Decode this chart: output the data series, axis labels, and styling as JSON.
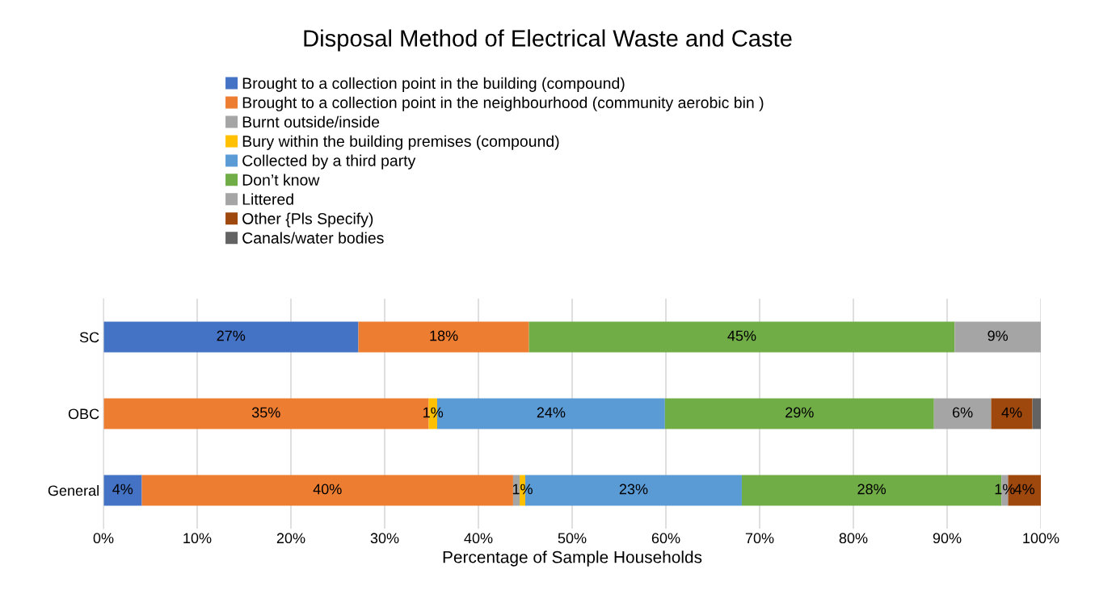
{
  "chart_data": {
    "type": "bar",
    "orientation": "horizontal",
    "stacked": true,
    "title": "Disposal Method of Electrical Waste and Caste",
    "xlabel": "Percentage of Sample Households",
    "categories": [
      "SC",
      "OBC",
      "General"
    ],
    "series": [
      {
        "name": "Brought to a collection point in the building (compound)",
        "color": "#4472c4",
        "values": [
          27.2,
          null,
          4.1
        ],
        "value_labels": [
          "27%",
          null,
          "4%"
        ]
      },
      {
        "name": "Brought to a collection point in the neighbourhood (community aerobic bin )",
        "color": "#ed7d31",
        "values": [
          18.2,
          34.7,
          39.6
        ],
        "value_labels": [
          "18%",
          "35%",
          "40%"
        ]
      },
      {
        "name": "Burnt outside/inside",
        "color": "#a5a5a5",
        "values": [
          null,
          null,
          0.7
        ],
        "value_labels": [
          null,
          null,
          null
        ]
      },
      {
        "name": "Bury within the building premises (compound)",
        "color": "#ffc000",
        "values": [
          null,
          0.9,
          0.6
        ],
        "value_labels": [
          null,
          "1%",
          "1%"
        ]
      },
      {
        "name": "Collected by a third party",
        "color": "#5b9bd5",
        "values": [
          null,
          24.3,
          23.1
        ],
        "value_labels": [
          null,
          "24%",
          "23%"
        ]
      },
      {
        "name": "Don’t know",
        "color": "#70ad47",
        "values": [
          45.4,
          28.7,
          27.7
        ],
        "value_labels": [
          "45%",
          "29%",
          "28%"
        ]
      },
      {
        "name": "Littered",
        "color": "#a5a5a5",
        "values": [
          9.2,
          6.1,
          0.7
        ],
        "value_labels": [
          "9%",
          "6%",
          "1%"
        ]
      },
      {
        "name": "Other {Pls Specify)",
        "color": "#9e480e",
        "values": [
          null,
          4.4,
          3.5
        ],
        "value_labels": [
          null,
          "4%",
          "4%"
        ]
      },
      {
        "name": "Canals/water bodies",
        "color": "#636363",
        "values": [
          null,
          0.9,
          null
        ],
        "value_labels": [
          null,
          null,
          null
        ]
      }
    ],
    "xlim": [
      0,
      100
    ],
    "xticks": [
      {
        "value": 0,
        "label": "0%"
      },
      {
        "value": 10,
        "label": "10%"
      },
      {
        "value": 20,
        "label": "20%"
      },
      {
        "value": 30,
        "label": "30%"
      },
      {
        "value": 40,
        "label": "40%"
      },
      {
        "value": 50,
        "label": "50%"
      },
      {
        "value": 60,
        "label": "60%"
      },
      {
        "value": 70,
        "label": "70%"
      },
      {
        "value": 80,
        "label": "80%"
      },
      {
        "value": 90,
        "label": "90%"
      },
      {
        "value": 100,
        "label": "100%"
      }
    ],
    "grid": "x",
    "legend": "top"
  }
}
